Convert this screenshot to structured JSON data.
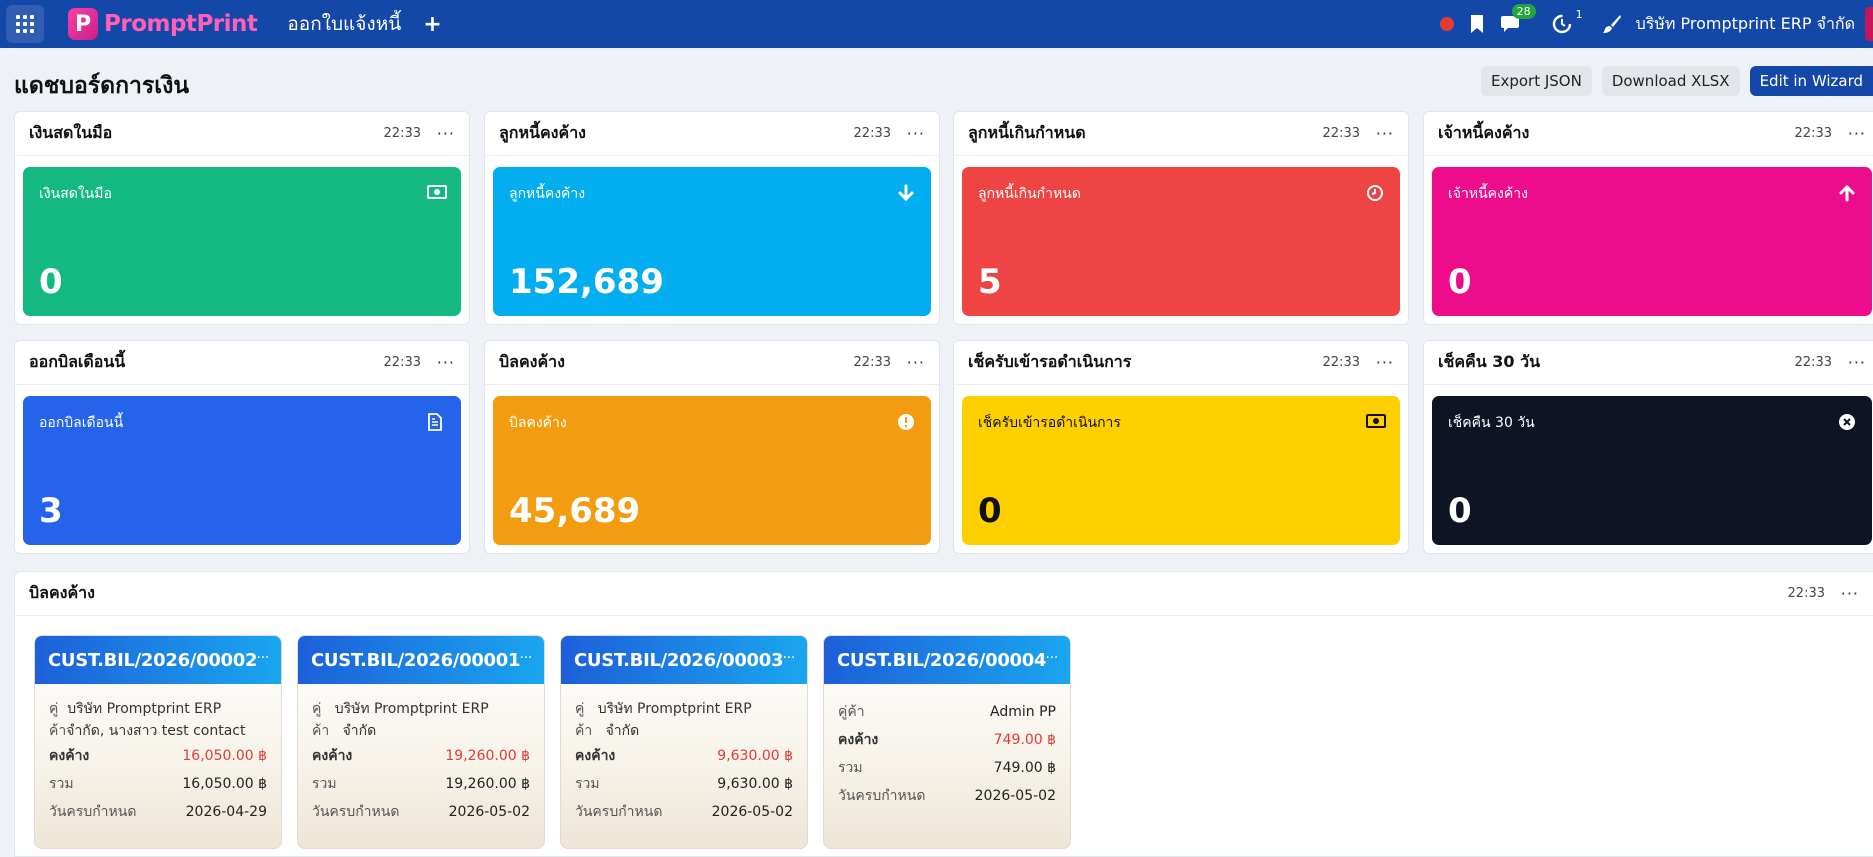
{
  "topbar": {
    "brand_part1": "Prompt",
    "brand_part2": "Print",
    "menu_title": "ออกใบแจ้งหนี้",
    "plus": "+",
    "chat_badge": "28",
    "activity_count": "1",
    "company": "บริษัท Promptprint ERP จำกัด"
  },
  "header": {
    "title": "แดชบอร์ดการเงิน",
    "export_json": "Export JSON",
    "download_xlsx": "Download XLSX",
    "edit_wizard": "Edit in Wizard"
  },
  "widgets": [
    {
      "title": "เงินสดในมือ",
      "time": "22:33",
      "label": "เงินสดในมือ",
      "value": "0",
      "color": "#13b981",
      "icon": "banknote-icon"
    },
    {
      "title": "ลูกหนี้คงค้าง",
      "time": "22:33",
      "label": "ลูกหนี้คงค้าง",
      "value": "152,689",
      "color": "#02aeef",
      "icon": "arrow-down-icon"
    },
    {
      "title": "ลูกหนี้เกินกำหนด",
      "time": "22:33",
      "label": "ลูกหนี้เกินกำหนด",
      "value": "5",
      "color": "#ef4444",
      "icon": "clock-icon"
    },
    {
      "title": "เจ้าหนี้คงค้าง",
      "time": "22:33",
      "label": "เจ้าหนี้คงค้าง",
      "value": "0",
      "color": "#ec0c8c",
      "icon": "arrow-up-icon"
    },
    {
      "title": "ออกบิลเดือนนี้",
      "time": "22:33",
      "label": "ออกบิลเดือนนี้",
      "value": "3",
      "color": "#2563eb",
      "icon": "document-icon"
    },
    {
      "title": "บิลคงค้าง",
      "time": "22:33",
      "label": "บิลคงค้าง",
      "value": "45,689",
      "color": "#f39c0f",
      "icon": "alert-icon"
    },
    {
      "title": "เช็ครับเข้ารอดำเนินการ",
      "time": "22:33",
      "label": "เช็ครับเข้ารอดำเนินการ",
      "value": "0",
      "color": "#ffd000",
      "icon": "banknote-icon"
    },
    {
      "title": "เช็คคืน 30 วัน",
      "time": "22:33",
      "label": "เช็คคืน 30 วัน",
      "value": "0",
      "color": "#0e1424",
      "icon": "x-circle-icon"
    }
  ],
  "bills": {
    "title": "บิลคงค้าง",
    "time": "22:33",
    "labels": {
      "customer": "คู่ค้า",
      "outstanding": "คงค้าง",
      "total": "รวม",
      "due": "วันครบกำหนด"
    },
    "items": [
      {
        "id": "CUST.BIL/2026/00002",
        "customer_a": "คู่",
        "customer_b": "ค้า",
        "customer_line1": "บริษัท Promptprint ERP",
        "customer_line2": "จำกัด, นางสาว test contact",
        "outstanding": "16,050.00 ฿",
        "total": "16,050.00 ฿",
        "due": "2026-04-29"
      },
      {
        "id": "CUST.BIL/2026/00001",
        "customer_a": "คู่",
        "customer_b": "ค้า",
        "customer_line1": "บริษัท Promptprint ERP",
        "customer_line2": "จำกัด",
        "outstanding": "19,260.00 ฿",
        "total": "19,260.00 ฿",
        "due": "2026-05-02"
      },
      {
        "id": "CUST.BIL/2026/00003",
        "customer_a": "คู่",
        "customer_b": "ค้า",
        "customer_line1": "บริษัท Promptprint ERP",
        "customer_line2": "จำกัด",
        "outstanding": "9,630.00 ฿",
        "total": "9,630.00 ฿",
        "due": "2026-05-02"
      },
      {
        "id": "CUST.BIL/2026/00004",
        "customer_label": "คู่ค้า",
        "customer_name": "Admin PP",
        "outstanding": "749.00 ฿",
        "total": "749.00 ฿",
        "due": "2026-05-02"
      }
    ]
  }
}
